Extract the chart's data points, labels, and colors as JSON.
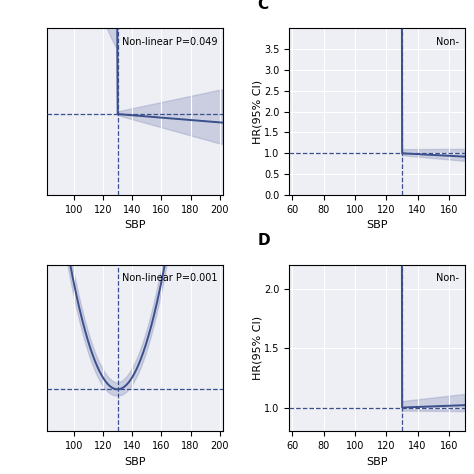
{
  "panel_A": {
    "xmin": 82,
    "xmax": 202,
    "ymin": -0.8,
    "ymax": 0.6,
    "ref_line_y": -0.12,
    "vline_x": 130,
    "text": "Non-linear P=0.049",
    "xlabel": "SBP",
    "ylabel": "",
    "xticks": [
      100,
      120,
      140,
      160,
      180,
      200
    ],
    "yticks": []
  },
  "panel_B": {
    "xmin": 58,
    "xmax": 170,
    "ymin": 0.0,
    "ymax": 4.0,
    "ref_line_y": 1.0,
    "vline_x": 130,
    "text": "Non-",
    "xlabel": "SBP",
    "ylabel": "HR(95% CI)",
    "yticks": [
      0.0,
      0.5,
      1.0,
      1.5,
      2.0,
      2.5,
      3.0,
      3.5
    ],
    "xticks": [
      60,
      80,
      100,
      120,
      140,
      160
    ],
    "label": "C"
  },
  "panel_C": {
    "xmin": 82,
    "xmax": 202,
    "ymin": -0.6,
    "ymax": 1.5,
    "ref_line_y": -0.07,
    "vline_x": 130,
    "text": "Non-linear P=0.001",
    "xlabel": "SBP",
    "ylabel": "",
    "xticks": [
      100,
      120,
      140,
      160,
      180,
      200
    ],
    "yticks": []
  },
  "panel_D": {
    "xmin": 58,
    "xmax": 170,
    "ymin": 0.8,
    "ymax": 2.2,
    "ref_line_y": 1.0,
    "vline_x": 130,
    "text": "Non-",
    "xlabel": "SBP",
    "ylabel": "HR(95% CI)",
    "yticks": [
      1.0,
      1.5,
      2.0
    ],
    "xticks": [
      60,
      80,
      100,
      120,
      140,
      160
    ],
    "label": "D"
  },
  "line_color": "#3A4F8B",
  "fill_color": "#8891BB",
  "fill_alpha": 0.35,
  "bg_color": "#EEEFF5",
  "grid_color": "#FFFFFF",
  "dashed_color": "#3A4F8B"
}
